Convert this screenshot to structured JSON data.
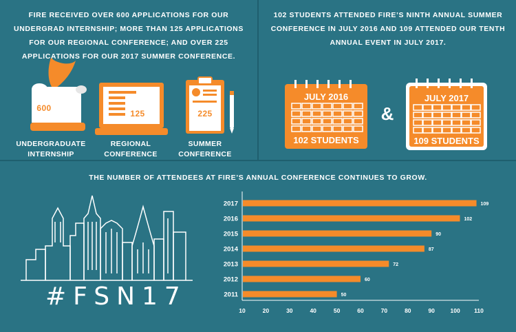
{
  "left_panel": {
    "text": "FIRE received over 600 applications for our undergrad internship; more than 125 applications for our regional conference; and over 225 applications for our 2017 summer conference.",
    "items": [
      {
        "value": "600",
        "label_line1": "UNDERGRADUATE",
        "label_line2": "INTERNSHIP"
      },
      {
        "value": "125",
        "label_line1": "REGIONAL CONFERENCE",
        "label_line2": ""
      },
      {
        "value": "225",
        "label_line1": "SUMMER",
        "label_line2": "CONFERENCE"
      }
    ]
  },
  "right_panel": {
    "text": "102 students attended FIRE’s ninth annual summer conference in July 2016 and 109 attended our tenth annual event in July 2017.",
    "calendar_2016": {
      "month": "JULY 2016",
      "students": "102 STUDENTS"
    },
    "ampersand": "&",
    "calendar_2017": {
      "month": "JULY 2017",
      "students": "109 STUDENTS"
    }
  },
  "bottom": {
    "heading": "The number of attendees at FIRE’s annual conference continues to grow.",
    "logo_text": "#FSN17"
  },
  "colors": {
    "background": "#2a7384",
    "accent": "#f58b2a",
    "white": "#ffffff",
    "divider": "#1f5f6e"
  },
  "chart_data": {
    "type": "bar",
    "orientation": "horizontal",
    "categories": [
      "2017",
      "2016",
      "2015",
      "2014",
      "2013",
      "2012",
      "2011"
    ],
    "values": [
      109,
      102,
      90,
      87,
      72,
      60,
      50
    ],
    "data_labels": [
      "109",
      "102",
      "90",
      "87",
      "72",
      "60",
      "50"
    ],
    "xlim": [
      10,
      110
    ],
    "xticks": [
      "10",
      "20",
      "30",
      "40",
      "50",
      "60",
      "70",
      "80",
      "90",
      "100",
      "110"
    ],
    "grid": false,
    "bar_color": "#f58b2a"
  }
}
